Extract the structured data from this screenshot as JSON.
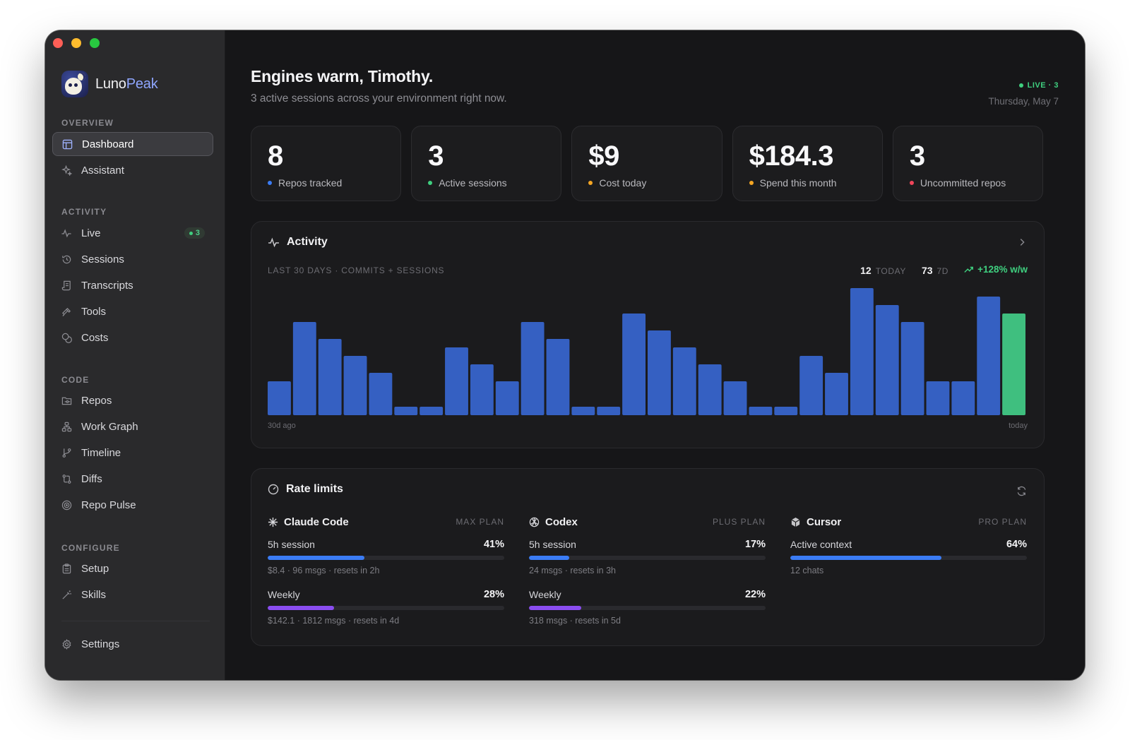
{
  "app": {
    "brand_first": "Luno",
    "brand_second": "Peak"
  },
  "sidebar": {
    "sections": [
      {
        "label": "OVERVIEW",
        "items": [
          {
            "label": "Dashboard",
            "icon": "layout-icon",
            "active": true
          },
          {
            "label": "Assistant",
            "icon": "sparkle-icon"
          }
        ]
      },
      {
        "label": "ACTIVITY",
        "items": [
          {
            "label": "Live",
            "icon": "pulse-icon",
            "badge": "3"
          },
          {
            "label": "Sessions",
            "icon": "history-icon"
          },
          {
            "label": "Transcripts",
            "icon": "scroll-icon"
          },
          {
            "label": "Tools",
            "icon": "hammer-icon"
          },
          {
            "label": "Costs",
            "icon": "coins-icon"
          }
        ]
      },
      {
        "label": "CODE",
        "items": [
          {
            "label": "Repos",
            "icon": "folder-git-icon"
          },
          {
            "label": "Work Graph",
            "icon": "network-icon"
          },
          {
            "label": "Timeline",
            "icon": "git-branch-icon"
          },
          {
            "label": "Diffs",
            "icon": "git-compare-icon"
          },
          {
            "label": "Repo Pulse",
            "icon": "radar-icon"
          }
        ]
      },
      {
        "label": "CONFIGURE",
        "items": [
          {
            "label": "Setup",
            "icon": "clipboard-icon"
          },
          {
            "label": "Skills",
            "icon": "wand-icon"
          }
        ]
      }
    ],
    "footer": {
      "label": "Settings",
      "icon": "gear-icon"
    }
  },
  "header": {
    "greeting": "Engines warm, Timothy.",
    "subtitle": "3 active sessions across your environment right now.",
    "live": "LIVE · 3",
    "date": "Thursday, May 7"
  },
  "stats": [
    {
      "value": "8",
      "label": "Repos tracked",
      "color": "#3b7cf4"
    },
    {
      "value": "3",
      "label": "Active sessions",
      "color": "#3fcf7f"
    },
    {
      "value": "$9",
      "label": "Cost today",
      "color": "#f5a623"
    },
    {
      "value": "$184.3",
      "label": "Spend this month",
      "color": "#f5a623"
    },
    {
      "value": "3",
      "label": "Uncommitted repos",
      "color": "#f0455a"
    }
  ],
  "activity": {
    "title": "Activity",
    "subtitle": "LAST 30 DAYS · COMMITS + SESSIONS",
    "today_num": "12",
    "today_unit": "TODAY",
    "week_num": "73",
    "week_unit": "7D",
    "trend": "+128% w/w",
    "axis_left": "30d ago",
    "axis_right": "today"
  },
  "chart_data": {
    "type": "bar",
    "values": [
      4,
      11,
      9,
      7,
      5,
      1,
      1,
      8,
      6,
      4,
      11,
      9,
      1,
      1,
      12,
      10,
      8,
      6,
      4,
      1,
      1,
      7,
      5,
      15,
      13,
      11,
      4,
      4,
      14,
      12
    ],
    "highlight_last": true,
    "colors": {
      "bar": "#3560c2",
      "today": "#3fbf7f"
    }
  },
  "rate_limits": {
    "title": "Rate limits",
    "providers": [
      {
        "name": "Claude Code",
        "icon": "asterisk-icon",
        "plan": "MAX PLAN",
        "rows": [
          {
            "label": "5h session",
            "pct": "41%",
            "fill": 0.41,
            "color": "blue",
            "meta": "$8.4 · 96 msgs · resets in 2h"
          },
          {
            "label": "Weekly",
            "pct": "28%",
            "fill": 0.28,
            "color": "purple",
            "meta": "$142.1 · 1812 msgs · resets in 4d"
          }
        ]
      },
      {
        "name": "Codex",
        "icon": "openai-knot-icon",
        "plan": "PLUS PLAN",
        "rows": [
          {
            "label": "5h session",
            "pct": "17%",
            "fill": 0.17,
            "color": "blue",
            "meta": "24 msgs · resets in 3h"
          },
          {
            "label": "Weekly",
            "pct": "22%",
            "fill": 0.22,
            "color": "purple",
            "meta": "318 msgs · resets in 5d"
          }
        ]
      },
      {
        "name": "Cursor",
        "icon": "cube-icon",
        "plan": "PRO PLAN",
        "rows": [
          {
            "label": "Active context",
            "pct": "64%",
            "fill": 0.64,
            "color": "blue",
            "meta": "12 chats"
          }
        ]
      }
    ]
  }
}
